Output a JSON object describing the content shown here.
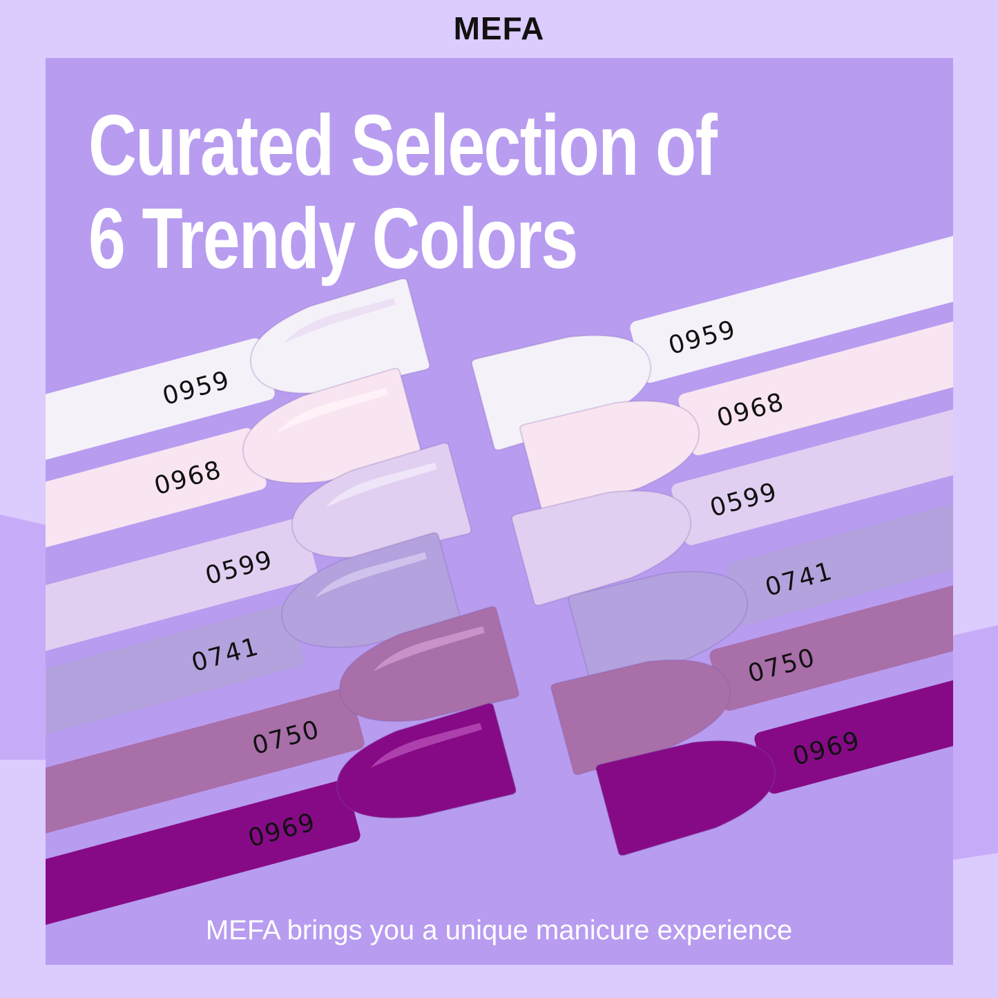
{
  "brand": "MEFA",
  "headline": {
    "line1": "Curated Selection of",
    "line2": "6 Trendy Colors"
  },
  "tagline": "MEFA brings you a unique manicure experience",
  "colors": {
    "outer_background": "#dccbfd",
    "panel": "#b89cf0",
    "wave": "#c6acf8"
  },
  "shades": [
    {
      "code": "0959",
      "color": "#f5f1f9",
      "shine": "#e9dcf3"
    },
    {
      "code": "0968",
      "color": "#f9e5f1",
      "shine": "#fff4fa"
    },
    {
      "code": "0599",
      "color": "#e1cff1",
      "shine": "#f3eafb"
    },
    {
      "code": "0741",
      "color": "#b4a2de",
      "shine": "#d6cbf0"
    },
    {
      "code": "0750",
      "color": "#a96fa9",
      "shine": "#d29bd0"
    },
    {
      "code": "0969",
      "color": "#860a86",
      "shine": "#b84db8"
    }
  ]
}
